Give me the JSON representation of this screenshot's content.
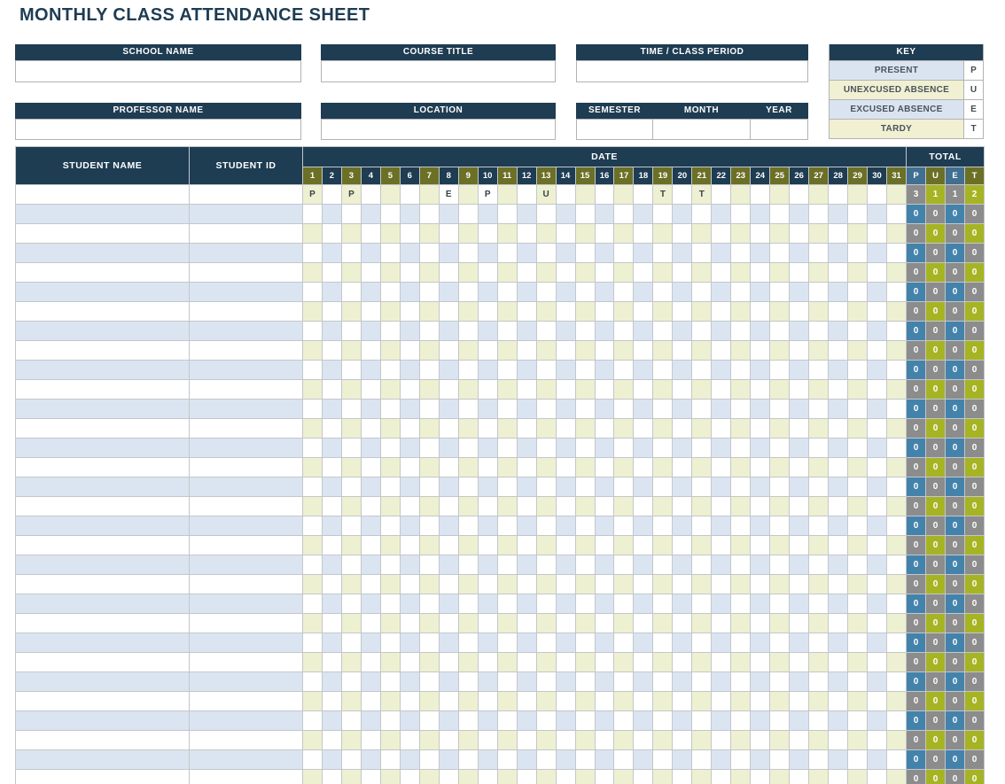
{
  "title": "MONTHLY CLASS ATTENDANCE SHEET",
  "form": {
    "school_name": {
      "label": "SCHOOL NAME",
      "value": ""
    },
    "course_title": {
      "label": "COURSE TITLE",
      "value": ""
    },
    "time_class_period": {
      "label": "TIME / CLASS PERIOD",
      "value": ""
    },
    "professor_name": {
      "label": "PROFESSOR NAME",
      "value": ""
    },
    "location": {
      "label": "LOCATION",
      "value": ""
    },
    "semester": {
      "label": "SEMESTER",
      "value": ""
    },
    "month": {
      "label": "MONTH",
      "value": ""
    },
    "year": {
      "label": "YEAR",
      "value": ""
    }
  },
  "key": {
    "header": "KEY",
    "rows": [
      {
        "label": "PRESENT",
        "code": "P"
      },
      {
        "label": "UNEXCUSED ABSENCE",
        "code": "U"
      },
      {
        "label": "EXCUSED ABSENCE",
        "code": "E"
      },
      {
        "label": "TARDY",
        "code": "T"
      }
    ]
  },
  "table": {
    "student_name_header": "STUDENT NAME",
    "student_id_header": "STUDENT ID",
    "date_header": "DATE",
    "total_header": "TOTAL",
    "dates": [
      1,
      2,
      3,
      4,
      5,
      6,
      7,
      8,
      9,
      10,
      11,
      12,
      13,
      14,
      15,
      16,
      17,
      18,
      19,
      20,
      21,
      22,
      23,
      24,
      25,
      26,
      27,
      28,
      29,
      30,
      31
    ],
    "total_columns": [
      "P",
      "U",
      "E",
      "T"
    ],
    "row_count": 31,
    "first_row": {
      "student_name": "",
      "student_id": "",
      "marks": {
        "1": "P",
        "3": "P",
        "8": "E",
        "10": "P",
        "13": "U",
        "19": "T",
        "21": "T"
      },
      "totals": [
        "3",
        "1",
        "1",
        "2"
      ]
    },
    "empty_row_totals": [
      "0",
      "0",
      "0",
      "0"
    ]
  },
  "colors": {
    "navy": "#1e3c52",
    "olive_header": "#6b7026",
    "puet_header_blue": "#406f91",
    "beige_cell": "#eef0d2",
    "light_blue_row": "#dbe5f1",
    "key_blue": "#d9e4f0",
    "key_cream": "#f1f0d2",
    "total_grey": "#8c8c8c",
    "total_blue": "#4383ab",
    "total_lime": "#a6b424"
  }
}
